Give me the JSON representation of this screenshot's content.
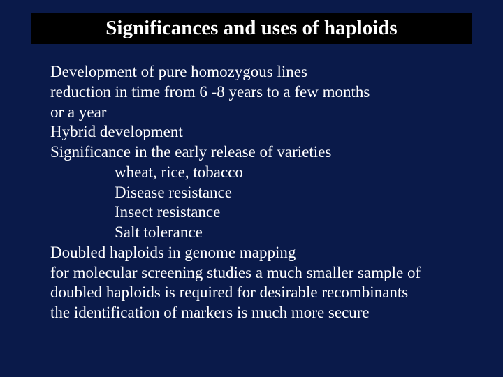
{
  "background_color": "#0a1a4a",
  "title_box_bg": "#000000",
  "text_color": "#ffffff",
  "title_fontsize": 29,
  "body_fontsize": 23,
  "font_family": "Times New Roman",
  "title": "Significances and uses of haploids",
  "lines": [
    {
      "text": "Development of pure homozygous lines",
      "indent": false
    },
    {
      "text": "reduction in time from 6 -8 years to a few months",
      "indent": false
    },
    {
      "text": "or a year",
      "indent": false
    },
    {
      "text": "Hybrid development",
      "indent": false
    },
    {
      "text": "Significance in the early release of varieties",
      "indent": false
    },
    {
      "text": "wheat, rice, tobacco",
      "indent": true
    },
    {
      "text": "Disease resistance",
      "indent": true
    },
    {
      "text": "Insect resistance",
      "indent": true
    },
    {
      "text": "Salt tolerance",
      "indent": true
    },
    {
      "text": "Doubled haploids in genome mapping",
      "indent": false
    },
    {
      "text": "for molecular screening studies a much smaller sample of",
      "indent": false
    },
    {
      "text": "doubled haploids is required for desirable recombinants",
      "indent": false
    },
    {
      "text": " the identification of markers is much more secure",
      "indent": false
    }
  ]
}
